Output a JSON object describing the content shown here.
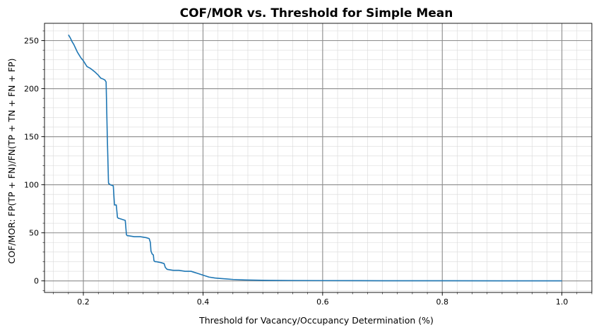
{
  "chart_data": {
    "type": "line",
    "title": "COF/MOR vs. Threshold for Simple Mean",
    "xlabel": "Threshold for Vacancy/Occupancy Determination (%)",
    "ylabel": "COF/MOR: FP(TP + FN)/FN(TP + TN + FN + FP)",
    "xlim": [
      0.135,
      1.05
    ],
    "ylim": [
      -12,
      268
    ],
    "xticks": [
      0.2,
      0.4,
      0.6,
      0.8,
      1.0
    ],
    "xtick_labels": [
      "0.2",
      "0.4",
      "0.6",
      "0.8",
      "1.0"
    ],
    "yticks": [
      0,
      50,
      100,
      150,
      200,
      250
    ],
    "ytick_labels": [
      "0",
      "50",
      "100",
      "150",
      "200",
      "250"
    ],
    "xminor_step": 0.025,
    "yminor_step": 10,
    "grid": true,
    "line_color": "#1f77b4",
    "series": [
      {
        "x": [
          0.175,
          0.178,
          0.181,
          0.184,
          0.187,
          0.19,
          0.193,
          0.196,
          0.2,
          0.203,
          0.206,
          0.209,
          0.212,
          0.216,
          0.22,
          0.225,
          0.229,
          0.233,
          0.236,
          0.238,
          0.24,
          0.242,
          0.2425,
          0.2435,
          0.245,
          0.25,
          0.252,
          0.255,
          0.257,
          0.259,
          0.26,
          0.265,
          0.27,
          0.272,
          0.2735,
          0.275,
          0.285,
          0.295,
          0.305,
          0.31,
          0.312,
          0.313,
          0.315,
          0.317,
          0.318,
          0.32,
          0.322,
          0.33,
          0.335,
          0.337,
          0.34,
          0.35,
          0.36,
          0.37,
          0.38,
          0.385,
          0.39,
          0.395,
          0.4,
          0.405,
          0.41,
          0.42,
          0.43,
          0.44,
          0.45,
          0.47,
          0.5,
          0.55,
          0.6,
          0.7,
          0.8,
          0.9,
          1.0
        ],
        "y": [
          256,
          253,
          249,
          246,
          242,
          238,
          235,
          232,
          229,
          226,
          223,
          222,
          221,
          219,
          217,
          214,
          211,
          210,
          209,
          207,
          150,
          102,
          101,
          101,
          100,
          99,
          79,
          79,
          66,
          65,
          65,
          64,
          63,
          48,
          47,
          47,
          46,
          46,
          45,
          44,
          40,
          31,
          28,
          27,
          21,
          20,
          20,
          19,
          18,
          14,
          12,
          11,
          11,
          10,
          10,
          9,
          8,
          7,
          6,
          5,
          4,
          3,
          2.5,
          2,
          1.5,
          1,
          0.6,
          0.4,
          0.3,
          0.2,
          0.15,
          0.1,
          0.1
        ]
      }
    ]
  }
}
